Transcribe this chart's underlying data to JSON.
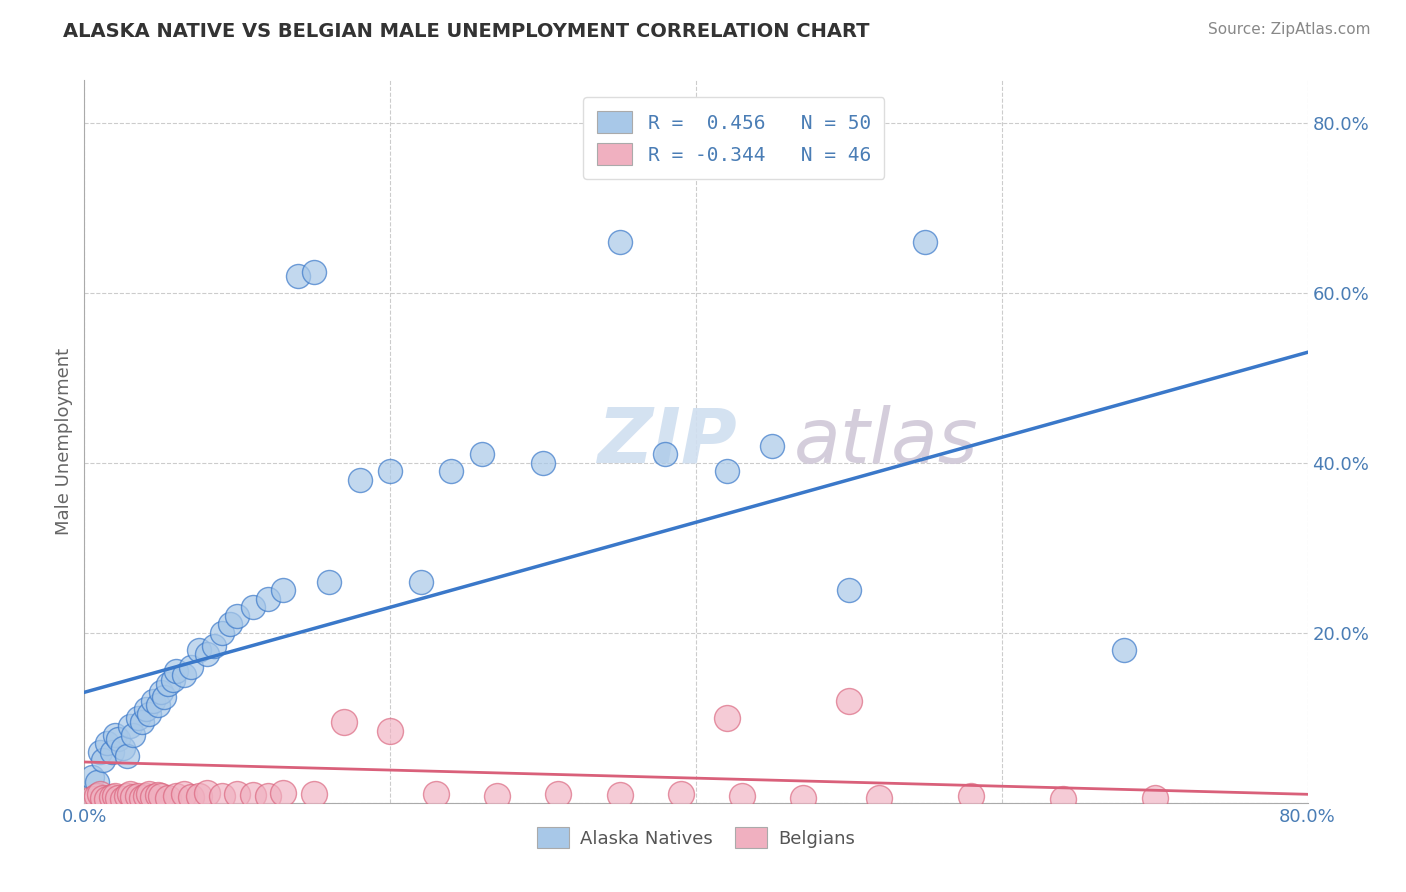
{
  "title": "ALASKA NATIVE VS BELGIAN MALE UNEMPLOYMENT CORRELATION CHART",
  "source": "Source: ZipAtlas.com",
  "ylabel": "Male Unemployment",
  "legend_r1": "R =  0.456   N = 50",
  "legend_r2": "R = -0.344   N = 46",
  "alaska_color": "#a8c8e8",
  "belgian_color": "#f0b0c0",
  "alaska_line_color": "#3a78c9",
  "belgian_line_color": "#d9607a",
  "background_color": "#ffffff",
  "alaska_scatter_x": [
    0.005,
    0.008,
    0.01,
    0.012,
    0.015,
    0.018,
    0.02,
    0.022,
    0.025,
    0.028,
    0.03,
    0.032,
    0.035,
    0.038,
    0.04,
    0.042,
    0.045,
    0.048,
    0.05,
    0.052,
    0.055,
    0.058,
    0.06,
    0.065,
    0.07,
    0.075,
    0.08,
    0.085,
    0.09,
    0.095,
    0.1,
    0.11,
    0.12,
    0.13,
    0.14,
    0.15,
    0.16,
    0.18,
    0.2,
    0.22,
    0.24,
    0.26,
    0.3,
    0.35,
    0.38,
    0.42,
    0.45,
    0.5,
    0.55,
    0.68
  ],
  "alaska_scatter_y": [
    0.03,
    0.025,
    0.06,
    0.05,
    0.07,
    0.06,
    0.08,
    0.075,
    0.065,
    0.055,
    0.09,
    0.08,
    0.1,
    0.095,
    0.11,
    0.105,
    0.12,
    0.115,
    0.13,
    0.125,
    0.14,
    0.145,
    0.155,
    0.15,
    0.16,
    0.18,
    0.175,
    0.185,
    0.2,
    0.21,
    0.22,
    0.23,
    0.24,
    0.25,
    0.62,
    0.625,
    0.26,
    0.38,
    0.39,
    0.26,
    0.39,
    0.41,
    0.4,
    0.66,
    0.41,
    0.39,
    0.42,
    0.25,
    0.66,
    0.18
  ],
  "belgian_scatter_x": [
    0.005,
    0.008,
    0.01,
    0.012,
    0.015,
    0.018,
    0.02,
    0.022,
    0.025,
    0.028,
    0.03,
    0.032,
    0.035,
    0.038,
    0.04,
    0.042,
    0.045,
    0.048,
    0.05,
    0.055,
    0.06,
    0.065,
    0.07,
    0.075,
    0.08,
    0.09,
    0.1,
    0.11,
    0.12,
    0.13,
    0.15,
    0.17,
    0.2,
    0.23,
    0.27,
    0.31,
    0.35,
    0.39,
    0.43,
    0.47,
    0.52,
    0.58,
    0.64,
    0.7,
    0.5,
    0.42
  ],
  "belgian_scatter_y": [
    0.005,
    0.008,
    0.01,
    0.006,
    0.005,
    0.007,
    0.008,
    0.006,
    0.005,
    0.008,
    0.01,
    0.007,
    0.008,
    0.006,
    0.008,
    0.01,
    0.007,
    0.009,
    0.008,
    0.006,
    0.008,
    0.01,
    0.007,
    0.008,
    0.012,
    0.008,
    0.01,
    0.009,
    0.008,
    0.012,
    0.01,
    0.095,
    0.085,
    0.01,
    0.008,
    0.01,
    0.009,
    0.01,
    0.008,
    0.006,
    0.006,
    0.008,
    0.005,
    0.006,
    0.12,
    0.1
  ],
  "xmin": 0.0,
  "xmax": 0.8,
  "ymin": 0.0,
  "ymax": 0.85,
  "yticks": [
    0.0,
    0.2,
    0.4,
    0.6,
    0.8
  ],
  "ytick_labels": [
    "",
    "20.0%",
    "40.0%",
    "60.0%",
    "80.0%"
  ],
  "xticks": [
    0.0,
    0.2,
    0.4,
    0.6,
    0.8
  ],
  "xtick_labels": [
    "0.0%",
    "",
    "",
    "",
    "80.0%"
  ],
  "alaska_line_x0": 0.0,
  "alaska_line_y0": 0.13,
  "alaska_line_x1": 0.8,
  "alaska_line_y1": 0.53,
  "belgian_line_x0": 0.0,
  "belgian_line_y0": 0.048,
  "belgian_line_x1": 0.8,
  "belgian_line_y1": 0.01
}
